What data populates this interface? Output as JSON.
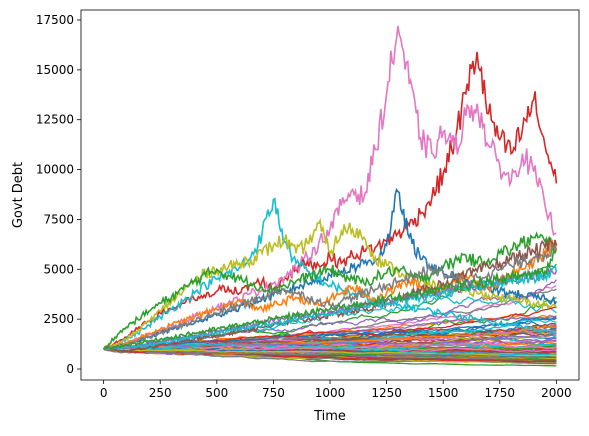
{
  "chart_data": {
    "type": "line",
    "title": "",
    "xlabel": "Time",
    "ylabel": "Govt Debt",
    "xlim": [
      -100,
      2100
    ],
    "ylim": [
      -550,
      18000
    ],
    "x_ticks": [
      0,
      250,
      500,
      750,
      1000,
      1250,
      1500,
      1750,
      2000
    ],
    "x_tick_labels": [
      "0",
      "250",
      "500",
      "750",
      "1000",
      "1250",
      "1500",
      "1750",
      "2000"
    ],
    "y_ticks": [
      0,
      2500,
      5000,
      7500,
      10000,
      12500,
      15000,
      17500
    ],
    "y_tick_labels": [
      "0",
      "2500",
      "5000",
      "7500",
      "10000",
      "12500",
      "15000",
      "17500"
    ],
    "grid": false,
    "legend": "none",
    "palette": [
      "#1f77b4",
      "#ff7f0e",
      "#2ca02c",
      "#d62728",
      "#9467bd",
      "#8c564b",
      "#e377c2",
      "#7f7f7f",
      "#bcbd22",
      "#17becf"
    ],
    "x": [
      0,
      50,
      100,
      150,
      200,
      250,
      300,
      350,
      400,
      450,
      500,
      550,
      600,
      650,
      700,
      750,
      800,
      850,
      900,
      950,
      1000,
      1050,
      1100,
      1150,
      1200,
      1250,
      1300,
      1350,
      1400,
      1450,
      1500,
      1550,
      1600,
      1650,
      1700,
      1750,
      1800,
      1850,
      1900,
      1950,
      2000
    ],
    "series": [
      {
        "color": "#d62728",
        "values": [
          1000,
          1300,
          1600,
          2000,
          2400,
          2800,
          3000,
          3300,
          3500,
          3600,
          3900,
          4100,
          3800,
          4200,
          4400,
          4000,
          4600,
          5000,
          5400,
          5200,
          5600,
          5300,
          5700,
          5900,
          6100,
          6400,
          6800,
          7200,
          7800,
          8600,
          9800,
          11500,
          13800,
          15900,
          12800,
          11500,
          10800,
          12000,
          13500,
          11200,
          9300
        ]
      },
      {
        "color": "#e377c2",
        "values": [
          1000,
          1150,
          1300,
          1500,
          1700,
          1900,
          2100,
          2400,
          2600,
          2900,
          3100,
          3300,
          3500,
          3800,
          4000,
          4300,
          4600,
          5000,
          5600,
          6300,
          7000,
          8200,
          9000,
          8600,
          11000,
          13800,
          17200,
          14300,
          11600,
          10800,
          11900,
          11000,
          12700,
          13300,
          11200,
          10200,
          9400,
          10800,
          9900,
          8200,
          6800
        ]
      },
      {
        "color": "#1f77b4",
        "values": [
          1000,
          1100,
          1250,
          1400,
          1600,
          1800,
          2000,
          2200,
          2300,
          2500,
          2700,
          2900,
          3100,
          3300,
          3500,
          3700,
          3900,
          4100,
          4300,
          4500,
          4700,
          4900,
          5100,
          5300,
          5500,
          6200,
          8900,
          6600,
          5500,
          5200,
          4800,
          4600,
          4400,
          4200,
          4000,
          3900,
          3800,
          3700,
          3600,
          3500,
          3400
        ]
      },
      {
        "color": "#17becf",
        "values": [
          1000,
          1200,
          1500,
          1800,
          2200,
          2600,
          3000,
          3400,
          3800,
          4200,
          4500,
          4800,
          5100,
          5600,
          6800,
          8500,
          6400,
          5300,
          4900,
          4500,
          4200,
          4000,
          3800,
          3600,
          3400,
          3300,
          3200,
          3100,
          3000,
          2900,
          2800,
          2700,
          2600,
          2500,
          2400,
          2300,
          2200,
          2100,
          2000,
          1900,
          1800
        ]
      },
      {
        "color": "#bcbd22",
        "values": [
          1000,
          1200,
          1500,
          1900,
          2400,
          2900,
          3400,
          3900,
          4400,
          4800,
          5000,
          5100,
          5300,
          5500,
          5800,
          6200,
          6500,
          5800,
          6300,
          7300,
          5800,
          6900,
          7000,
          6600,
          5600,
          5200,
          4900,
          4600,
          4400,
          4200,
          4100,
          4000,
          3900,
          3800,
          3700,
          3600,
          3500,
          3400,
          3300,
          3200,
          3100
        ]
      },
      {
        "color": "#2ca02c",
        "values": [
          1000,
          1600,
          2100,
          2500,
          2900,
          3300,
          3600,
          4000,
          4400,
          4700,
          5000,
          4700,
          4500,
          4300,
          4100,
          4000,
          4200,
          4400,
          4600,
          4800,
          5000,
          4700,
          4500,
          4300,
          4600,
          4800,
          5000,
          4700,
          4500,
          4800,
          5100,
          5400,
          5700,
          5300,
          5500,
          5800,
          6000,
          6300,
          6600,
          6400,
          6200
        ]
      },
      {
        "color": "#ff7f0e",
        "values": [
          1000,
          1100,
          1300,
          1500,
          1800,
          2000,
          2200,
          2400,
          2600,
          2800,
          3000,
          3200,
          3400,
          3200,
          3000,
          3200,
          3400,
          3600,
          3400,
          3200,
          3500,
          3800,
          4100,
          3800,
          3500,
          3800,
          4100,
          4400,
          4100,
          3800,
          4100,
          4400,
          4700,
          4400,
          4100,
          4400,
          4700,
          5000,
          5300,
          5800,
          6300
        ]
      },
      {
        "color": "#8c564b",
        "values": [
          1000,
          950,
          900,
          1000,
          1100,
          1200,
          1300,
          1400,
          1500,
          1600,
          1700,
          1800,
          1900,
          2000,
          2100,
          2200,
          2300,
          2400,
          2500,
          2600,
          2700,
          2800,
          2900,
          3000,
          3100,
          3300,
          3500,
          3700,
          3900,
          4100,
          4300,
          4500,
          4700,
          4900,
          5100,
          5300,
          5500,
          5700,
          5900,
          6100,
          6200
        ]
      },
      {
        "color": "#7f7f7f",
        "values": [
          1000,
          1100,
          1200,
          1400,
          1600,
          1800,
          2000,
          2200,
          2400,
          2600,
          2800,
          3000,
          3200,
          3400,
          3600,
          3800,
          4000,
          3800,
          3600,
          3400,
          3200,
          3400,
          3600,
          3800,
          4000,
          4200,
          4400,
          4600,
          4800,
          5000,
          4800,
          4600,
          4400,
          4600,
          4800,
          5000,
          5200,
          5400,
          5600,
          5800,
          6000
        ]
      },
      {
        "color": "#9467bd",
        "values": [
          1000,
          1050,
          1100,
          1200,
          1300,
          1400,
          1500,
          1600,
          1700,
          1800,
          1900,
          2000,
          2100,
          2200,
          2300,
          2400,
          2500,
          2600,
          2700,
          2800,
          2900,
          3000,
          3100,
          3200,
          3300,
          3400,
          3500,
          3600,
          3700,
          3800,
          3900,
          4000,
          4100,
          4200,
          4300,
          4400,
          4500,
          4600,
          4700,
          4800,
          4900
        ]
      },
      {
        "color": "#17becf",
        "values": [
          1000,
          1050,
          1100,
          1150,
          1200,
          1300,
          1400,
          1500,
          1600,
          1700,
          1800,
          1900,
          2000,
          2100,
          2200,
          2300,
          2400,
          2500,
          2600,
          2700,
          2800,
          2900,
          3000,
          3100,
          3200,
          3300,
          3400,
          3500,
          3600,
          3700,
          3800,
          3900,
          4000,
          4100,
          4200,
          4300,
          4400,
          4500,
          4600,
          4700,
          4900
        ]
      },
      {
        "color": "#2ca02c",
        "values": [
          1000,
          1100,
          1200,
          1300,
          1400,
          1500,
          1600,
          1700,
          1800,
          1900,
          2000,
          2100,
          2200,
          2300,
          2400,
          2500,
          2600,
          2700,
          2800,
          2900,
          3000,
          3100,
          3200,
          3300,
          3400,
          3500,
          3600,
          3700,
          3800,
          3900,
          4000,
          4100,
          4200,
          4300,
          4400,
          4500,
          4600,
          4700,
          4800,
          4900,
          6000
        ]
      }
    ]
  }
}
